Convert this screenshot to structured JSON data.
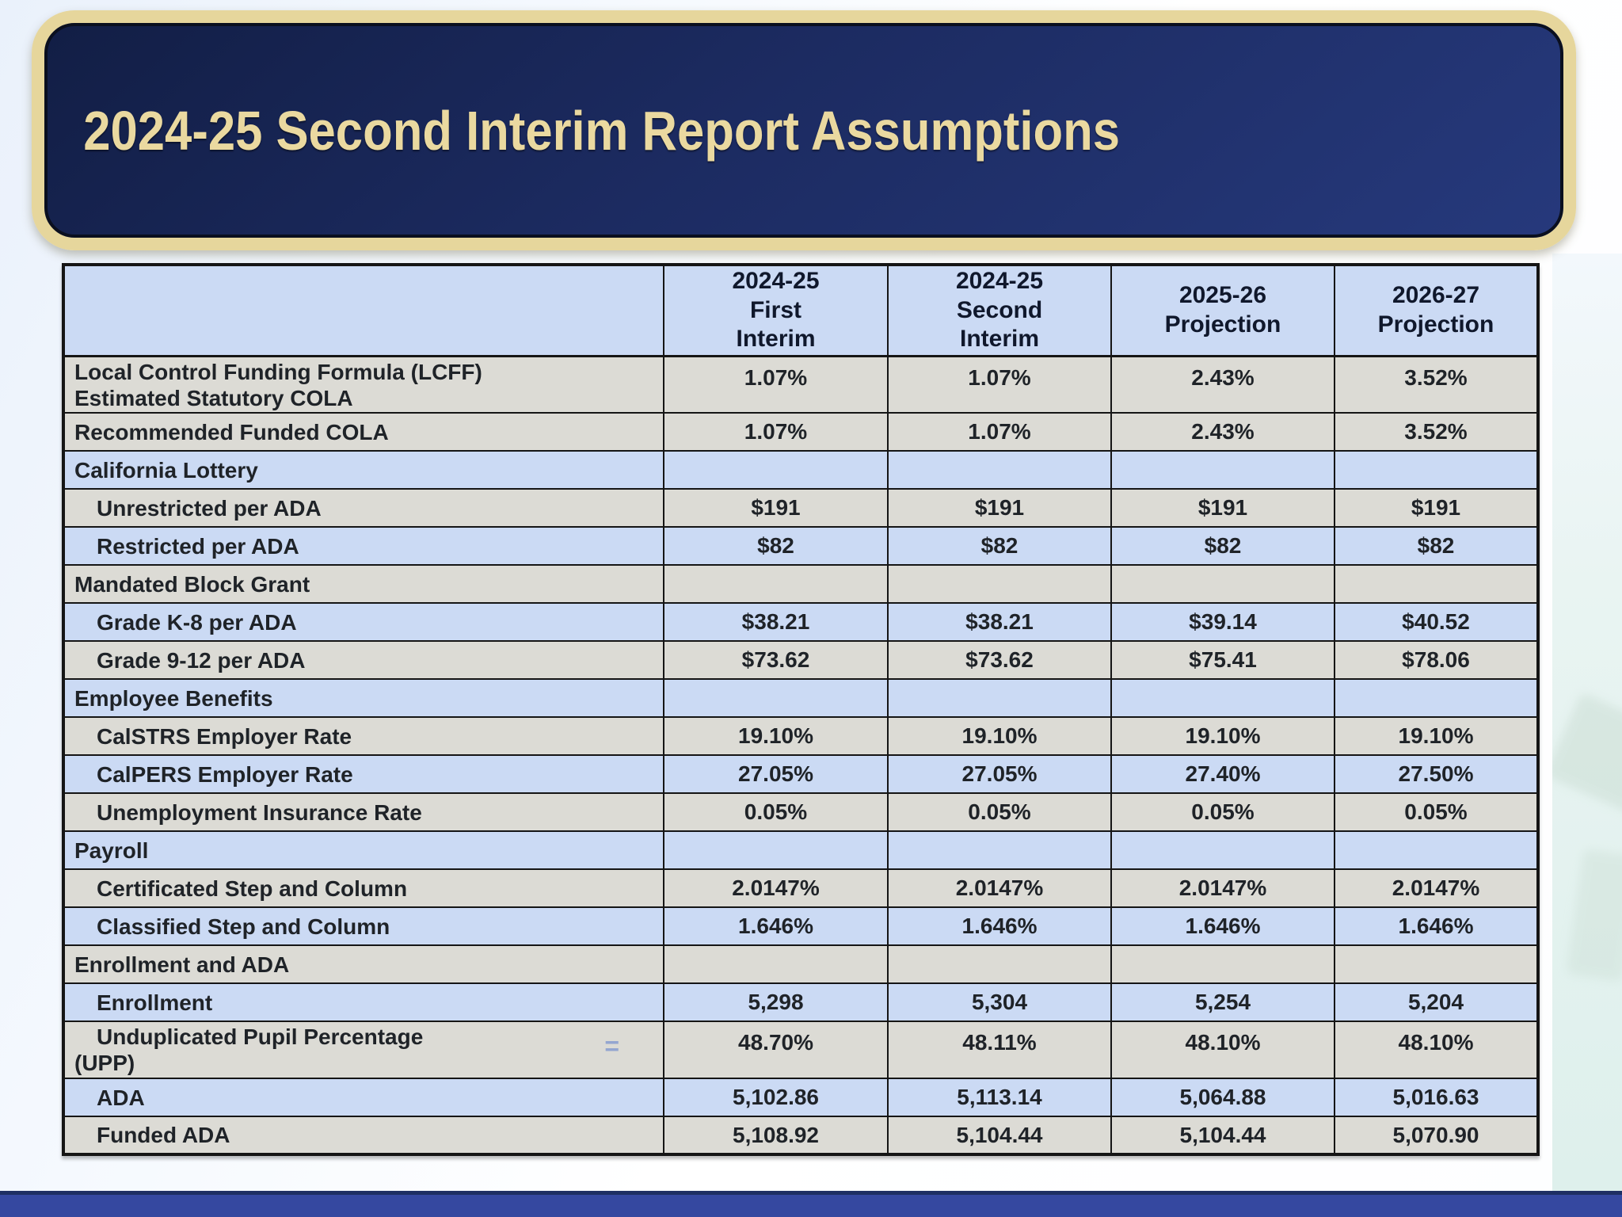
{
  "slide": {
    "title": "2024-25 Second Interim Report Assumptions"
  },
  "palette": {
    "banner_fill": "#1c2b61",
    "banner_border": "#e6d69c",
    "banner_text": "#ead9a0",
    "header_bg": "#cbdaf4",
    "row_blue": "#cbdaf4",
    "row_gray": "#dcdbd5",
    "table_border": "#151515",
    "footer_bar": "#3548a0",
    "footer_bar_edge": "#1e2f63"
  },
  "icons": {
    "equals_glyph": "="
  },
  "table": {
    "col_headers": [
      "2024-25\nFirst\nInterim",
      "2024-25\nSecond\nInterim",
      "2025-26\nProjection",
      "2026-27\nProjection"
    ],
    "rows": [
      {
        "label": "Local Control Funding Formula (LCFF)\nEstimated Statutory COLA",
        "tone": "gray",
        "tall": true,
        "values": [
          "1.07%",
          "1.07%",
          "2.43%",
          "3.52%"
        ]
      },
      {
        "label": "Recommended Funded COLA",
        "tone": "gray",
        "values": [
          "1.07%",
          "1.07%",
          "2.43%",
          "3.52%"
        ]
      },
      {
        "label": "California Lottery",
        "tone": "blue",
        "section": true,
        "values": [
          "",
          "",
          "",
          ""
        ]
      },
      {
        "label": "Unrestricted per ADA",
        "tone": "gray",
        "indent": true,
        "values": [
          "$191",
          "$191",
          "$191",
          "$191"
        ]
      },
      {
        "label": "Restricted per ADA",
        "tone": "blue",
        "indent": true,
        "values": [
          "$82",
          "$82",
          "$82",
          "$82"
        ]
      },
      {
        "label": "Mandated Block Grant",
        "tone": "gray",
        "section": true,
        "values": [
          "",
          "",
          "",
          ""
        ]
      },
      {
        "label": "Grade K-8 per ADA",
        "tone": "blue",
        "indent": true,
        "values": [
          "$38.21",
          "$38.21",
          "$39.14",
          "$40.52"
        ]
      },
      {
        "label": "Grade 9-12 per ADA",
        "tone": "gray",
        "indent": true,
        "values": [
          "$73.62",
          "$73.62",
          "$75.41",
          "$78.06"
        ]
      },
      {
        "label": "Employee Benefits",
        "tone": "blue",
        "section": true,
        "values": [
          "",
          "",
          "",
          ""
        ]
      },
      {
        "label": "CalSTRS Employer Rate",
        "tone": "gray",
        "indent": true,
        "values": [
          "19.10%",
          "19.10%",
          "19.10%",
          "19.10%"
        ]
      },
      {
        "label": "CalPERS Employer Rate",
        "tone": "blue",
        "indent": true,
        "values": [
          "27.05%",
          "27.05%",
          "27.40%",
          "27.50%"
        ]
      },
      {
        "label": "Unemployment Insurance Rate",
        "tone": "gray",
        "indent": true,
        "values": [
          "0.05%",
          "0.05%",
          "0.05%",
          "0.05%"
        ]
      },
      {
        "label": "Payroll",
        "tone": "blue",
        "section": true,
        "values": [
          "",
          "",
          "",
          ""
        ]
      },
      {
        "label": "Certificated Step and Column",
        "tone": "gray",
        "indent": true,
        "values": [
          "2.0147%",
          "2.0147%",
          "2.0147%",
          "2.0147%"
        ]
      },
      {
        "label": "Classified Step and Column",
        "tone": "blue",
        "indent": true,
        "values": [
          "1.646%",
          "1.646%",
          "1.646%",
          "1.646%"
        ]
      },
      {
        "label": "Enrollment and ADA",
        "tone": "gray",
        "section": true,
        "values": [
          "",
          "",
          "",
          ""
        ]
      },
      {
        "label": "Enrollment",
        "tone": "blue",
        "indent": true,
        "values": [
          "5,298",
          "5,304",
          "5,254",
          "5,204"
        ]
      },
      {
        "label": "Unduplicated Pupil Percentage\n(UPP)",
        "tone": "gray",
        "indent": true,
        "tall": true,
        "icon": "equals",
        "values": [
          "48.70%",
          "48.11%",
          "48.10%",
          "48.10%"
        ]
      },
      {
        "label": "ADA",
        "tone": "blue",
        "indent": true,
        "values": [
          "5,102.86",
          "5,113.14",
          "5,064.88",
          "5,016.63"
        ]
      },
      {
        "label": "Funded ADA",
        "tone": "gray",
        "indent": true,
        "values": [
          "5,108.92",
          "5,104.44",
          "5,104.44",
          "5,070.90"
        ]
      }
    ]
  }
}
